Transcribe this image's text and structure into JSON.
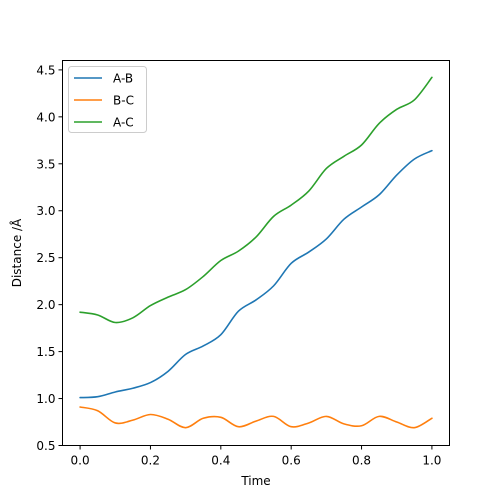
{
  "chart_data": {
    "type": "line",
    "title": "",
    "xlabel": "Time",
    "ylabel": "Distance /Å",
    "xlim": [
      -0.05,
      1.05
    ],
    "ylim": [
      0.5,
      4.6
    ],
    "xticks": [
      0.0,
      0.2,
      0.4,
      0.6,
      0.8,
      1.0
    ],
    "xtick_labels": [
      "0.0",
      "0.2",
      "0.4",
      "0.6",
      "0.8",
      "1.0"
    ],
    "yticks": [
      0.5,
      1.0,
      1.5,
      2.0,
      2.5,
      3.0,
      3.5,
      4.0,
      4.5
    ],
    "ytick_labels": [
      "0.5",
      "1.0",
      "1.5",
      "2.0",
      "2.5",
      "3.0",
      "3.5",
      "4.0",
      "4.5"
    ],
    "grid": false,
    "legend": "top-left",
    "x": [
      0.0,
      0.05,
      0.1,
      0.15,
      0.2,
      0.25,
      0.3,
      0.35,
      0.4,
      0.45,
      0.5,
      0.55,
      0.6,
      0.65,
      0.7,
      0.75,
      0.8,
      0.85,
      0.9,
      0.95,
      1.0
    ],
    "series": [
      {
        "name": "A-B",
        "color": "#1f77b4",
        "values": [
          1.01,
          1.02,
          1.07,
          1.11,
          1.17,
          1.29,
          1.47,
          1.56,
          1.68,
          1.93,
          2.05,
          2.2,
          2.44,
          2.56,
          2.7,
          2.91,
          3.04,
          3.17,
          3.38,
          3.55,
          3.64
        ]
      },
      {
        "name": "B-C",
        "color": "#ff7f0e",
        "values": [
          0.91,
          0.87,
          0.74,
          0.77,
          0.83,
          0.78,
          0.69,
          0.79,
          0.8,
          0.7,
          0.76,
          0.81,
          0.7,
          0.74,
          0.81,
          0.73,
          0.71,
          0.81,
          0.75,
          0.69,
          0.79
        ]
      },
      {
        "name": "A-C",
        "color": "#2ca02c",
        "values": [
          1.92,
          1.89,
          1.81,
          1.86,
          1.99,
          2.08,
          2.16,
          2.3,
          2.47,
          2.57,
          2.72,
          2.94,
          3.06,
          3.21,
          3.45,
          3.58,
          3.7,
          3.93,
          4.08,
          4.18,
          4.42
        ]
      }
    ]
  }
}
